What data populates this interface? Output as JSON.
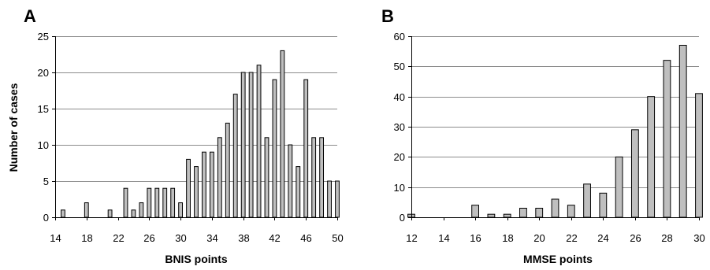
{
  "chart_data": [
    {
      "panel": "A",
      "type": "bar",
      "xlabel": "BNIS points",
      "ylabel": "Number of cases",
      "ylim": [
        0,
        25
      ],
      "yticks": [
        0,
        5,
        10,
        15,
        20,
        25
      ],
      "xlim": [
        14,
        50
      ],
      "xticks": [
        14,
        18,
        22,
        26,
        30,
        34,
        38,
        42,
        46,
        50
      ],
      "grid": "horizontal",
      "bar_color": "#bfbfbf",
      "x": [
        15,
        18,
        21,
        23,
        24,
        25,
        26,
        27,
        28,
        29,
        30,
        31,
        32,
        33,
        34,
        35,
        36,
        37,
        38,
        39,
        40,
        41,
        42,
        43,
        44,
        45,
        46,
        47,
        48,
        49,
        50
      ],
      "values": [
        1,
        2,
        1,
        4,
        1,
        2,
        4,
        4,
        4,
        4,
        2,
        8,
        7,
        9,
        9,
        11,
        13,
        17,
        20,
        20,
        21,
        11,
        19,
        23,
        10,
        7,
        19,
        11,
        11,
        5,
        5
      ]
    },
    {
      "panel": "B",
      "type": "bar",
      "xlabel": "MMSE points",
      "ylabel": "",
      "ylim": [
        0,
        60
      ],
      "yticks": [
        0,
        10,
        20,
        30,
        40,
        50,
        60
      ],
      "xlim": [
        12,
        30
      ],
      "xticks": [
        12,
        14,
        16,
        18,
        20,
        22,
        24,
        26,
        28,
        30
      ],
      "grid": "horizontal",
      "bar_color": "#bfbfbf",
      "x": [
        12,
        16,
        17,
        18,
        19,
        20,
        21,
        22,
        23,
        24,
        25,
        26,
        27,
        28,
        29,
        30
      ],
      "values": [
        1,
        4,
        1,
        1,
        3,
        3,
        6,
        4,
        11,
        8,
        20,
        29,
        40,
        52,
        57,
        41
      ]
    }
  ]
}
